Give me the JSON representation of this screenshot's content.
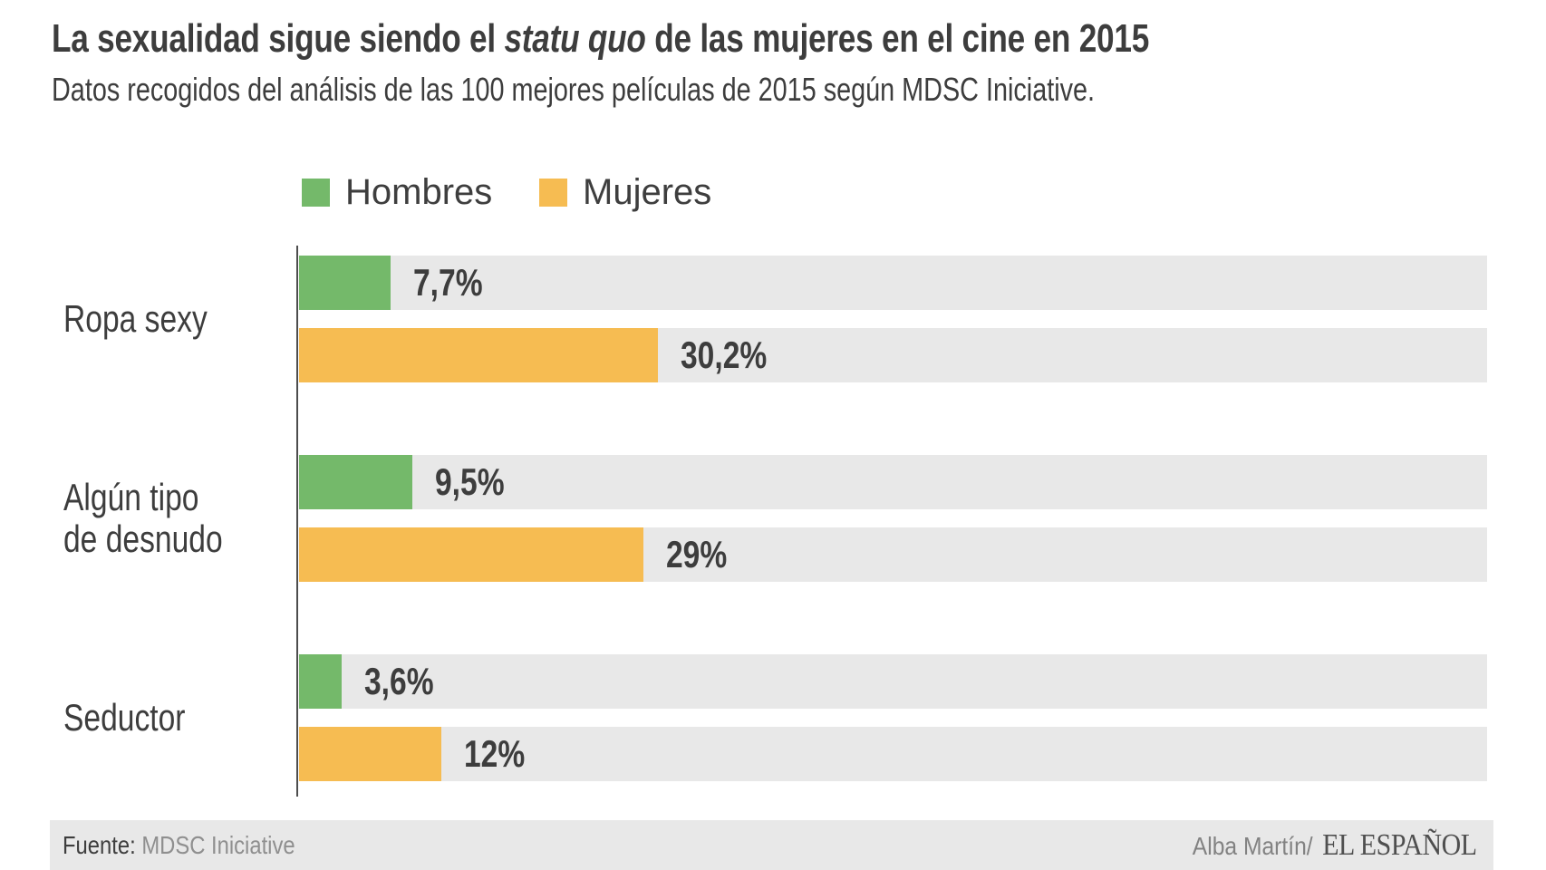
{
  "title": {
    "part1": "La sexualidad sigue siendo el ",
    "italic": "statu quo",
    "part2": " de las mujeres en el cine en 2015"
  },
  "subtitle": "Datos recogidos del análisis de las 100 mejores películas de 2015 según MDSC Iniciative.",
  "chart_data": {
    "type": "bar",
    "orientation": "horizontal",
    "title": "La sexualidad sigue siendo el statu quo de las mujeres en el cine en 2015",
    "subtitle": "Datos recogidos del análisis de las 100 mejores películas de 2015 según MDSC Iniciative.",
    "categories": [
      "Ropa sexy",
      "Algún tipo de desnudo",
      "Seductor"
    ],
    "categories_display": [
      "Ropa sexy",
      "Algún tipo\nde desnudo",
      "Seductor"
    ],
    "series": [
      {
        "name": "Hombres",
        "color": "#74b96a",
        "values": [
          7.7,
          9.5,
          3.6
        ],
        "labels": [
          "7,7%",
          "9,5%",
          "3,6%"
        ]
      },
      {
        "name": "Mujeres",
        "color": "#f6bc52",
        "values": [
          30.2,
          29,
          12
        ],
        "labels": [
          "30,2%",
          "29%",
          "12%"
        ]
      }
    ],
    "xlim": [
      0,
      100
    ],
    "value_suffix": "%",
    "decimal_separator": ",",
    "track_color": "#e8e8e8",
    "grid": false,
    "legend_position": "top"
  },
  "footer": {
    "source_label": "Fuente:",
    "source_value": "MDSC Iniciative",
    "credit": "Alba Martín/",
    "brand": "EL ESPAÑOL"
  }
}
